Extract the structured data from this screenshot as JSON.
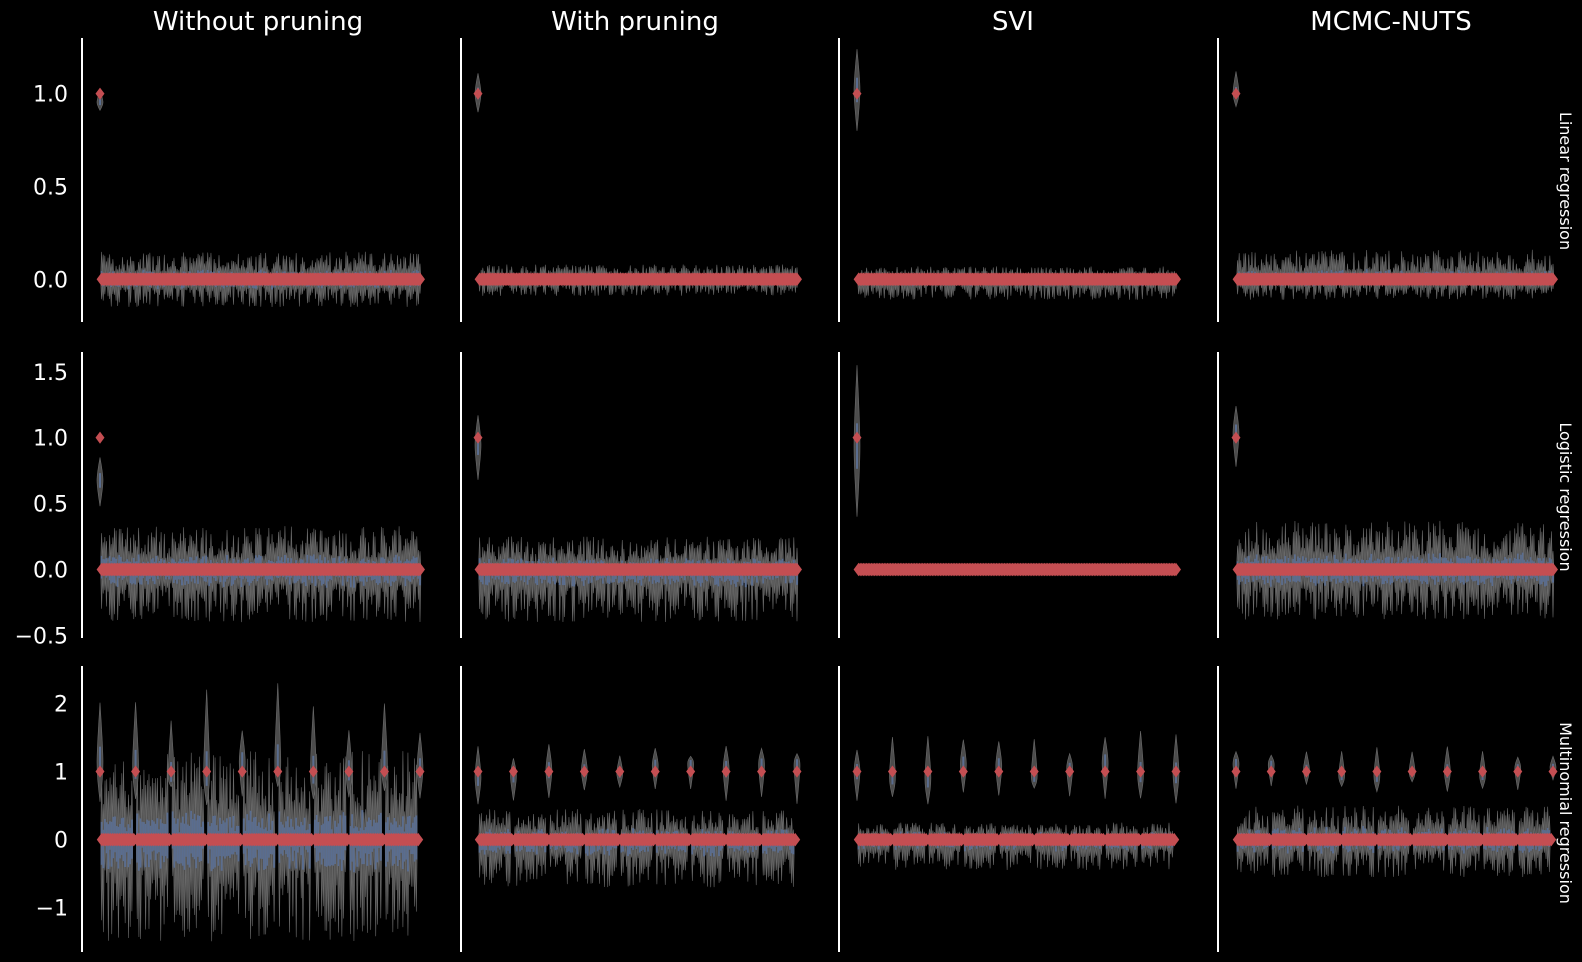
{
  "column_titles": [
    "Without pruning",
    "With pruning",
    "SVI",
    "MCMC-NUTS"
  ],
  "row_labels": [
    "Linear regression",
    "Logistic regression",
    "Multinomial regression"
  ],
  "colors": {
    "background": "#000000",
    "true_value_marker": "#c44e52",
    "posterior_violin": "#4c4c4c",
    "posterior_median": "#5a6d8f",
    "axis": "#ffffff"
  },
  "chart_data": [
    {
      "row": "Linear regression",
      "type": "violin",
      "x_type": "coefficient index (200 coefficients)",
      "ylim": [
        -0.23,
        1.3
      ],
      "yticks": [
        0.0,
        0.5,
        1.0
      ],
      "ytick_labels": [
        "0.0",
        "0.5",
        "1.0"
      ],
      "true_values": "coefficient 1 = 1.0, coefficients 2-200 = 0.0",
      "panels": [
        {
          "column": "Without pruning",
          "first_coef": {
            "median": 0.95,
            "low": 0.91,
            "high": 1.02
          },
          "other_coefs_spread": [
            -0.15,
            0.15
          ]
        },
        {
          "column": "With pruning",
          "first_coef": {
            "median": 1.0,
            "low": 0.9,
            "high": 1.11
          },
          "other_coefs_spread": [
            -0.09,
            0.08
          ]
        },
        {
          "column": "SVI",
          "first_coef": {
            "median": 1.02,
            "low": 0.8,
            "high": 1.24
          },
          "other_coefs_spread": [
            -0.11,
            0.07
          ]
        },
        {
          "column": "MCMC-NUTS",
          "first_coef": {
            "median": 1.0,
            "low": 0.93,
            "high": 1.12
          },
          "other_coefs_spread": [
            -0.11,
            0.16
          ]
        }
      ]
    },
    {
      "row": "Logistic regression",
      "type": "violin",
      "x_type": "coefficient index (200 coefficients)",
      "ylim": [
        -0.52,
        1.65
      ],
      "yticks": [
        -0.5,
        0.0,
        0.5,
        1.0,
        1.5
      ],
      "ytick_labels": [
        "−0.5",
        "0.0",
        "0.5",
        "1.0",
        "1.5"
      ],
      "true_values": "coefficient 1 = 1.0, coefficients 2-200 = 0.0",
      "panels": [
        {
          "column": "Without pruning",
          "first_coef": {
            "median": 0.68,
            "low": 0.48,
            "high": 0.85
          },
          "other_coefs_spread": [
            -0.4,
            0.33
          ]
        },
        {
          "column": "With pruning",
          "first_coef": {
            "median": 0.95,
            "low": 0.68,
            "high": 1.17
          },
          "other_coefs_spread": [
            -0.4,
            0.25
          ]
        },
        {
          "column": "SVI",
          "first_coef": {
            "median": 0.92,
            "low": 0.4,
            "high": 1.55
          },
          "other_coefs_spread": [
            -0.04,
            0.04
          ]
        },
        {
          "column": "MCMC-NUTS",
          "first_coef": {
            "median": 1.04,
            "low": 0.78,
            "high": 1.24
          },
          "other_coefs_spread": [
            -0.38,
            0.37
          ]
        }
      ]
    },
    {
      "row": "Multinomial regression",
      "type": "violin",
      "x_type": "coefficient index (10 groups of 20 coefficients)",
      "ylim": [
        -1.65,
        2.55
      ],
      "yticks": [
        -1,
        0,
        1,
        2
      ],
      "ytick_labels": [
        "−1",
        "0",
        "1",
        "2"
      ],
      "true_values": "first coefficient of each of 10 groups = 1, others = 0",
      "panels": [
        {
          "column": "Without pruning",
          "first_coefs_range": [
            0.5,
            2.4
          ],
          "other_coefs_spread": [
            -1.5,
            1.3
          ]
        },
        {
          "column": "With pruning",
          "first_coefs_range": [
            0.45,
            1.4
          ],
          "other_coefs_spread": [
            -0.7,
            0.45
          ]
        },
        {
          "column": "SVI",
          "first_coefs_range": [
            0.5,
            1.6
          ],
          "other_coefs_spread": [
            -0.45,
            0.25
          ]
        },
        {
          "column": "MCMC-NUTS",
          "first_coefs_range": [
            0.7,
            1.4
          ],
          "other_coefs_spread": [
            -0.55,
            0.5
          ]
        }
      ]
    }
  ]
}
